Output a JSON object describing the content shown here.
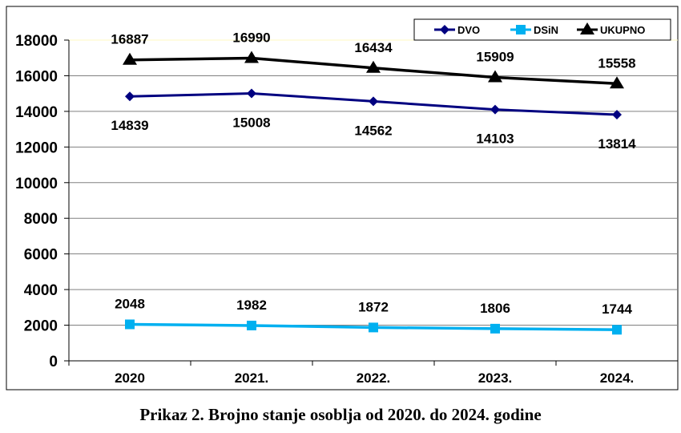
{
  "chart_data": {
    "type": "line",
    "title": "",
    "xlabel": "",
    "ylabel": "",
    "categories": [
      "2020",
      "2021.",
      "2022.",
      "2023.",
      "2024."
    ],
    "ylim": [
      0,
      18000
    ],
    "yticks": [
      "0",
      "2000",
      "4000",
      "6000",
      "8000",
      "10000",
      "12000",
      "14000",
      "16000",
      "18000"
    ],
    "grid": true,
    "legend_position": "top-right",
    "series": [
      {
        "name": "DVO",
        "values": [
          14839,
          15008,
          14562,
          14103,
          13814
        ],
        "labels": [
          "14839",
          "15008",
          "14562",
          "14103",
          "13814"
        ],
        "color": "#000080",
        "marker": "diamond",
        "label_position": "below"
      },
      {
        "name": "DSiN",
        "values": [
          2048,
          1982,
          1872,
          1806,
          1744
        ],
        "labels": [
          "2048",
          "1982",
          "1872",
          "1806",
          "1744"
        ],
        "color": "#00B0F0",
        "marker": "square",
        "label_position": "above"
      },
      {
        "name": "UKUPNO",
        "values": [
          16887,
          16990,
          16434,
          15909,
          15558
        ],
        "labels": [
          "16887",
          "16990",
          "16434",
          "15909",
          "15558"
        ],
        "color": "#000000",
        "marker": "triangle",
        "label_position": "above"
      }
    ]
  },
  "caption": "Prikaz 2. Brojno stanje osoblja od 2020. do 2024. godine"
}
